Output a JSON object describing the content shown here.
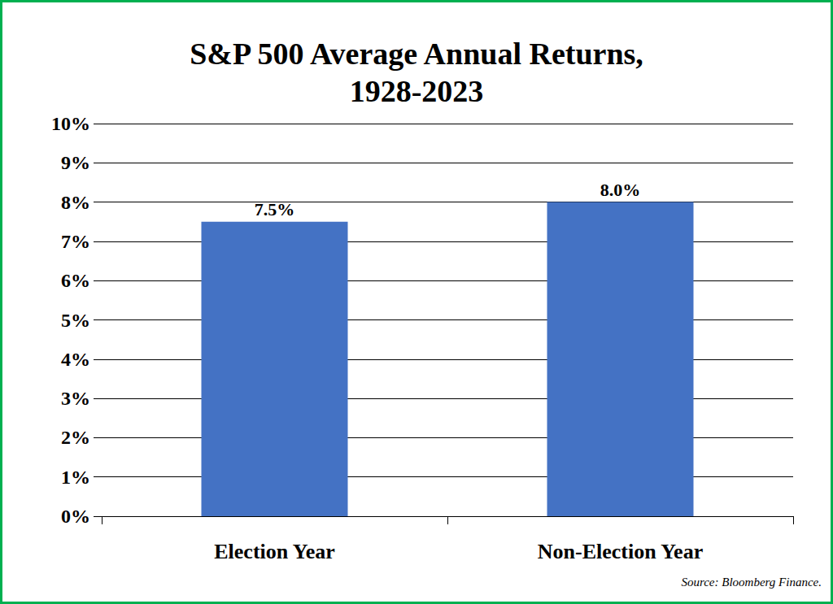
{
  "chart_data": {
    "type": "bar",
    "title": "S&P 500 Average Annual Returns,\n1928-2023",
    "categories": [
      "Election Year",
      "Non-Election Year"
    ],
    "values": [
      7.5,
      8.0
    ],
    "value_labels": [
      "7.5%",
      "8.0%"
    ],
    "color": "#4472c4",
    "ylim": [
      0,
      10
    ],
    "yticks": [
      {
        "value": 0,
        "label": "0%"
      },
      {
        "value": 1,
        "label": "1%"
      },
      {
        "value": 2,
        "label": "2%"
      },
      {
        "value": 3,
        "label": "3%"
      },
      {
        "value": 4,
        "label": "4%"
      },
      {
        "value": 5,
        "label": "5%"
      },
      {
        "value": 6,
        "label": "6%"
      },
      {
        "value": 7,
        "label": "7%"
      },
      {
        "value": 8,
        "label": "8%"
      },
      {
        "value": 9,
        "label": "9%"
      },
      {
        "value": 10,
        "label": "10%"
      }
    ],
    "grid": true,
    "data_labels": true,
    "annotations": [
      "Source: Bloomberg Finance."
    ]
  }
}
